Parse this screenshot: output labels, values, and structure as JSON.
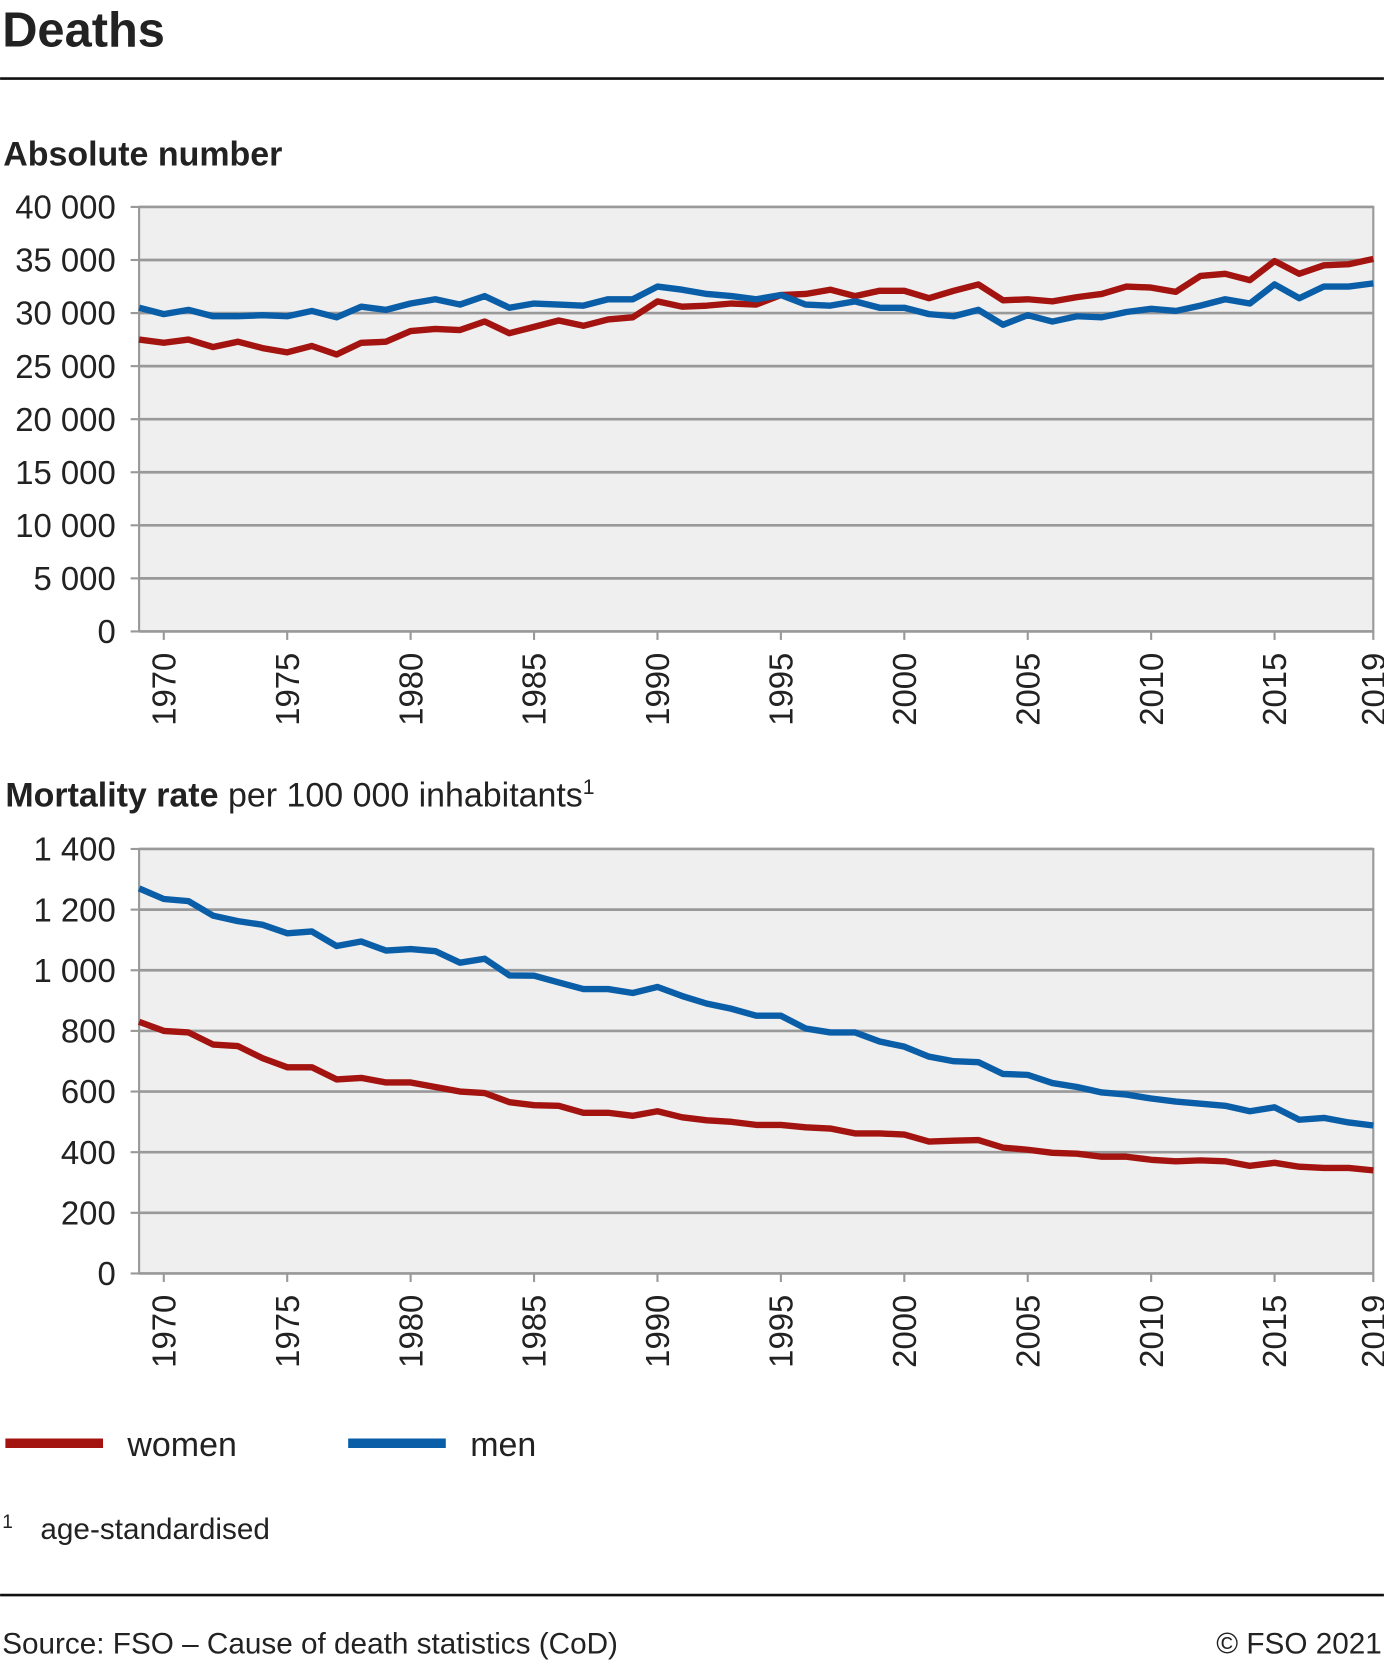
{
  "title": "Deaths",
  "chart_data": [
    {
      "type": "line",
      "title": "Absolute number",
      "x": [
        1969,
        1970,
        1971,
        1972,
        1973,
        1974,
        1975,
        1976,
        1977,
        1978,
        1979,
        1980,
        1981,
        1982,
        1983,
        1984,
        1985,
        1986,
        1987,
        1988,
        1989,
        1990,
        1991,
        1992,
        1993,
        1994,
        1995,
        1996,
        1997,
        1998,
        1999,
        2000,
        2001,
        2002,
        2003,
        2004,
        2005,
        2006,
        2007,
        2008,
        2009,
        2010,
        2011,
        2012,
        2013,
        2014,
        2015,
        2016,
        2017,
        2018,
        2019
      ],
      "xlim": [
        1969,
        2019
      ],
      "xticks": [
        1970,
        1975,
        1980,
        1985,
        1990,
        1995,
        2000,
        2005,
        2010,
        2015,
        2019
      ],
      "ylim": [
        0,
        40000
      ],
      "yticks": [
        0,
        {
          "value": 5000,
          "label": "5 000"
        },
        {
          "value": 10000,
          "label": "10 000"
        },
        {
          "value": 15000,
          "label": "15 000"
        },
        {
          "value": 20000,
          "label": "20 000"
        },
        {
          "value": 25000,
          "label": "25 000"
        },
        {
          "value": 30000,
          "label": "30 000"
        },
        {
          "value": 35000,
          "label": "35 000"
        },
        {
          "value": 40000,
          "label": "40 000"
        }
      ],
      "grid": true,
      "series": [
        {
          "name": "women",
          "color": "#a3130f",
          "values": [
            27500,
            27200,
            27500,
            26800,
            27300,
            26700,
            26300,
            26900,
            26100,
            27200,
            27300,
            28300,
            28500,
            28400,
            29200,
            28100,
            28700,
            29300,
            28800,
            29400,
            29600,
            31100,
            30600,
            30700,
            30900,
            30800,
            31700,
            31800,
            32200,
            31600,
            32100,
            32100,
            31400,
            32100,
            32700,
            31200,
            31300,
            31100,
            31500,
            31800,
            32500,
            32400,
            32000,
            33500,
            33700,
            33100,
            34900,
            33700,
            34500,
            34600,
            35100
          ]
        },
        {
          "name": "men",
          "color": "#0a5ea8",
          "values": [
            30500,
            29900,
            30300,
            29700,
            29700,
            29800,
            29700,
            30200,
            29600,
            30600,
            30300,
            30900,
            31300,
            30800,
            31600,
            30500,
            30900,
            30800,
            30700,
            31300,
            31300,
            32500,
            32200,
            31800,
            31600,
            31300,
            31700,
            30800,
            30700,
            31100,
            30500,
            30500,
            29900,
            29700,
            30300,
            28900,
            29800,
            29200,
            29700,
            29600,
            30100,
            30400,
            30200,
            30700,
            31300,
            30900,
            32700,
            31400,
            32500,
            32500,
            32800
          ]
        }
      ]
    },
    {
      "type": "line",
      "title": "Mortality rate",
      "subtitle": "per 100 000 inhabitants",
      "title_note": "1",
      "x": [
        1969,
        1970,
        1971,
        1972,
        1973,
        1974,
        1975,
        1976,
        1977,
        1978,
        1979,
        1980,
        1981,
        1982,
        1983,
        1984,
        1985,
        1986,
        1987,
        1988,
        1989,
        1990,
        1991,
        1992,
        1993,
        1994,
        1995,
        1996,
        1997,
        1998,
        1999,
        2000,
        2001,
        2002,
        2003,
        2004,
        2005,
        2006,
        2007,
        2008,
        2009,
        2010,
        2011,
        2012,
        2013,
        2014,
        2015,
        2016,
        2017,
        2018,
        2019
      ],
      "xlim": [
        1969,
        2019
      ],
      "xticks": [
        1970,
        1975,
        1980,
        1985,
        1990,
        1995,
        2000,
        2005,
        2010,
        2015,
        2019
      ],
      "ylim": [
        0,
        1400
      ],
      "yticks": [
        0,
        200,
        400,
        600,
        800,
        {
          "value": 1000,
          "label": "1 000"
        },
        {
          "value": 1200,
          "label": "1 200"
        },
        {
          "value": 1400,
          "label": "1 400"
        }
      ],
      "grid": true,
      "series": [
        {
          "name": "women",
          "color": "#a3130f",
          "values": [
            830,
            800,
            795,
            755,
            750,
            710,
            680,
            680,
            640,
            645,
            630,
            630,
            615,
            600,
            595,
            565,
            555,
            553,
            530,
            530,
            520,
            535,
            515,
            505,
            500,
            490,
            490,
            482,
            478,
            462,
            462,
            458,
            435,
            438,
            440,
            415,
            408,
            398,
            395,
            385,
            385,
            375,
            370,
            373,
            370,
            355,
            365,
            352,
            348,
            348,
            340
          ]
        },
        {
          "name": "men",
          "color": "#0a5ea8",
          "values": [
            1270,
            1235,
            1228,
            1180,
            1162,
            1150,
            1122,
            1128,
            1080,
            1095,
            1065,
            1070,
            1063,
            1025,
            1038,
            983,
            982,
            960,
            938,
            938,
            925,
            945,
            915,
            890,
            873,
            850,
            850,
            808,
            795,
            795,
            765,
            748,
            715,
            700,
            697,
            658,
            655,
            628,
            615,
            597,
            590,
            577,
            567,
            560,
            553,
            535,
            548,
            507,
            513,
            498,
            488
          ]
        }
      ]
    }
  ],
  "footnote": {
    "mark": "1",
    "text": "age-standardised"
  },
  "source": "Source: FSO – Cause of death statistics (CoD)",
  "copyright": "© FSO 2021"
}
